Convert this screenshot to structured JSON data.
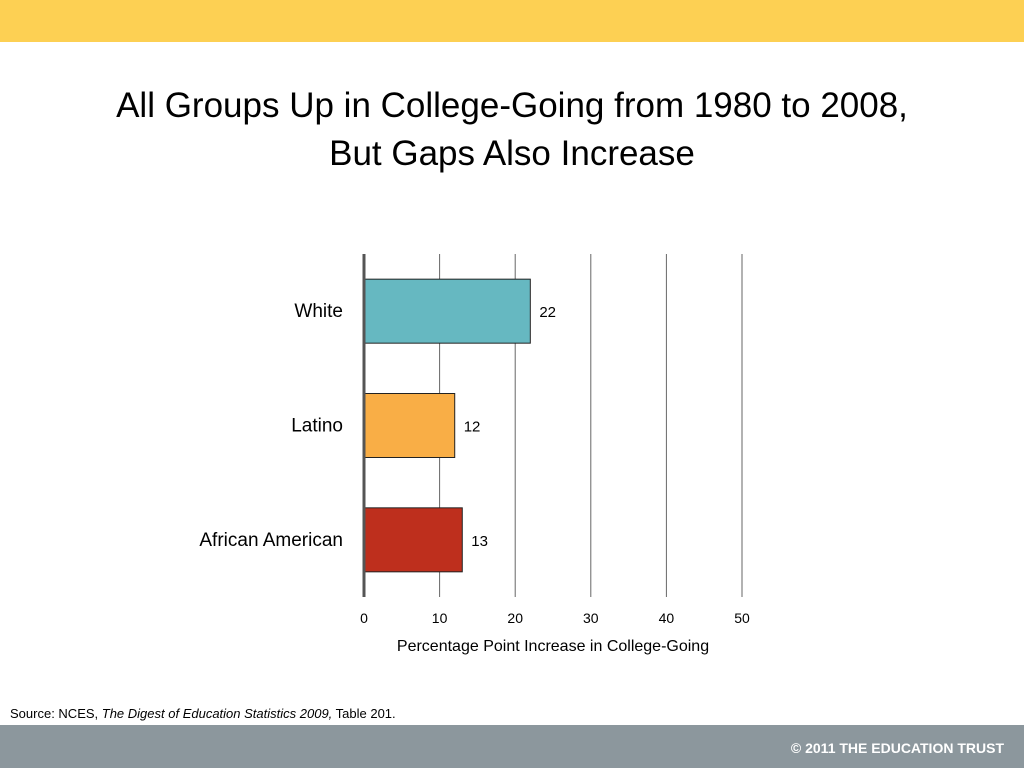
{
  "colors": {
    "top_band": "#FDD053",
    "footer_band": "#8C979D",
    "gridline": "#666666",
    "axis": "#555555"
  },
  "title": {
    "line1": "All Groups Up in College-Going from 1980 to 2008,",
    "line2": "But Gaps Also Increase"
  },
  "chart_data": {
    "type": "bar",
    "orientation": "horizontal",
    "categories": [
      "White",
      "Latino",
      "African American"
    ],
    "values": [
      22,
      12,
      13
    ],
    "bar_colors": [
      "#66B8C1",
      "#F9AE46",
      "#BE2F1D"
    ],
    "data_labels": [
      "22",
      "12",
      "13"
    ],
    "xlabel": "Percentage Point Increase in College-Going",
    "xlim": [
      0,
      50
    ],
    "xticks": [
      "0",
      "10",
      "20",
      "30",
      "40",
      "50"
    ],
    "grid": true,
    "legend": "none"
  },
  "source": {
    "prefix": "Source: NCES, ",
    "publication": "The Digest of Education Statistics 2009,",
    "suffix": " Table 201."
  },
  "footer": {
    "copyright": "© 2011 THE EDUCATION TRUST"
  }
}
